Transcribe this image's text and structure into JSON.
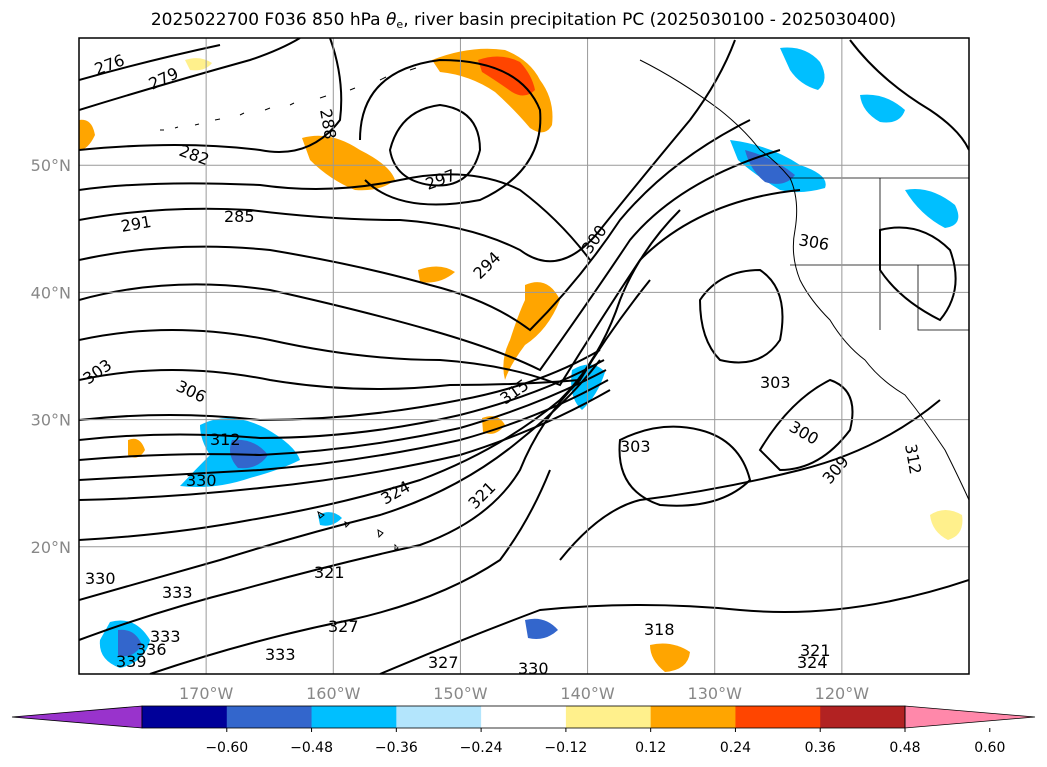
{
  "title": {
    "prefix": "2025022700 F036 850 hPa ",
    "theta_symbol": "θ",
    "theta_sub": "e",
    "suffix": ", river basin precipitation PC (2025030100 - 2025030400)"
  },
  "map": {
    "lon_range": [
      -180,
      -110
    ],
    "lat_range": [
      10,
      60
    ],
    "lat_ticks": [
      {
        "value": 50,
        "label": "50°N"
      },
      {
        "value": 40,
        "label": "40°N"
      },
      {
        "value": 30,
        "label": "30°N"
      },
      {
        "value": 20,
        "label": "20°N"
      }
    ],
    "lon_ticks": [
      {
        "value": -170,
        "label": "170°W"
      },
      {
        "value": -160,
        "label": "160°W"
      },
      {
        "value": -150,
        "label": "150°W"
      },
      {
        "value": -140,
        "label": "140°W"
      },
      {
        "value": -130,
        "label": "130°W"
      },
      {
        "value": -120,
        "label": "120°W"
      }
    ],
    "grid": true,
    "contour_variable": "850 hPa theta-e (K)",
    "contour_labels": [
      "276",
      "279",
      "282",
      "285",
      "288",
      "291",
      "294",
      "297",
      "300",
      "303",
      "306",
      "309",
      "312",
      "315",
      "318",
      "321",
      "324",
      "327",
      "330",
      "333",
      "336",
      "339"
    ]
  },
  "colorbar": {
    "ticks": [
      "−0.60",
      "−0.48",
      "−0.36",
      "−0.24",
      "−0.12",
      "0.12",
      "0.24",
      "0.36",
      "0.48",
      "0.60"
    ],
    "colors": [
      "#9933cc",
      "#000099",
      "#3366cc",
      "#00bfff",
      "#b3e5fc",
      "#ffffff",
      "#fff08c",
      "#ffa500",
      "#ff4500",
      "#b22222",
      "#ff88aa"
    ],
    "extend": "both"
  }
}
